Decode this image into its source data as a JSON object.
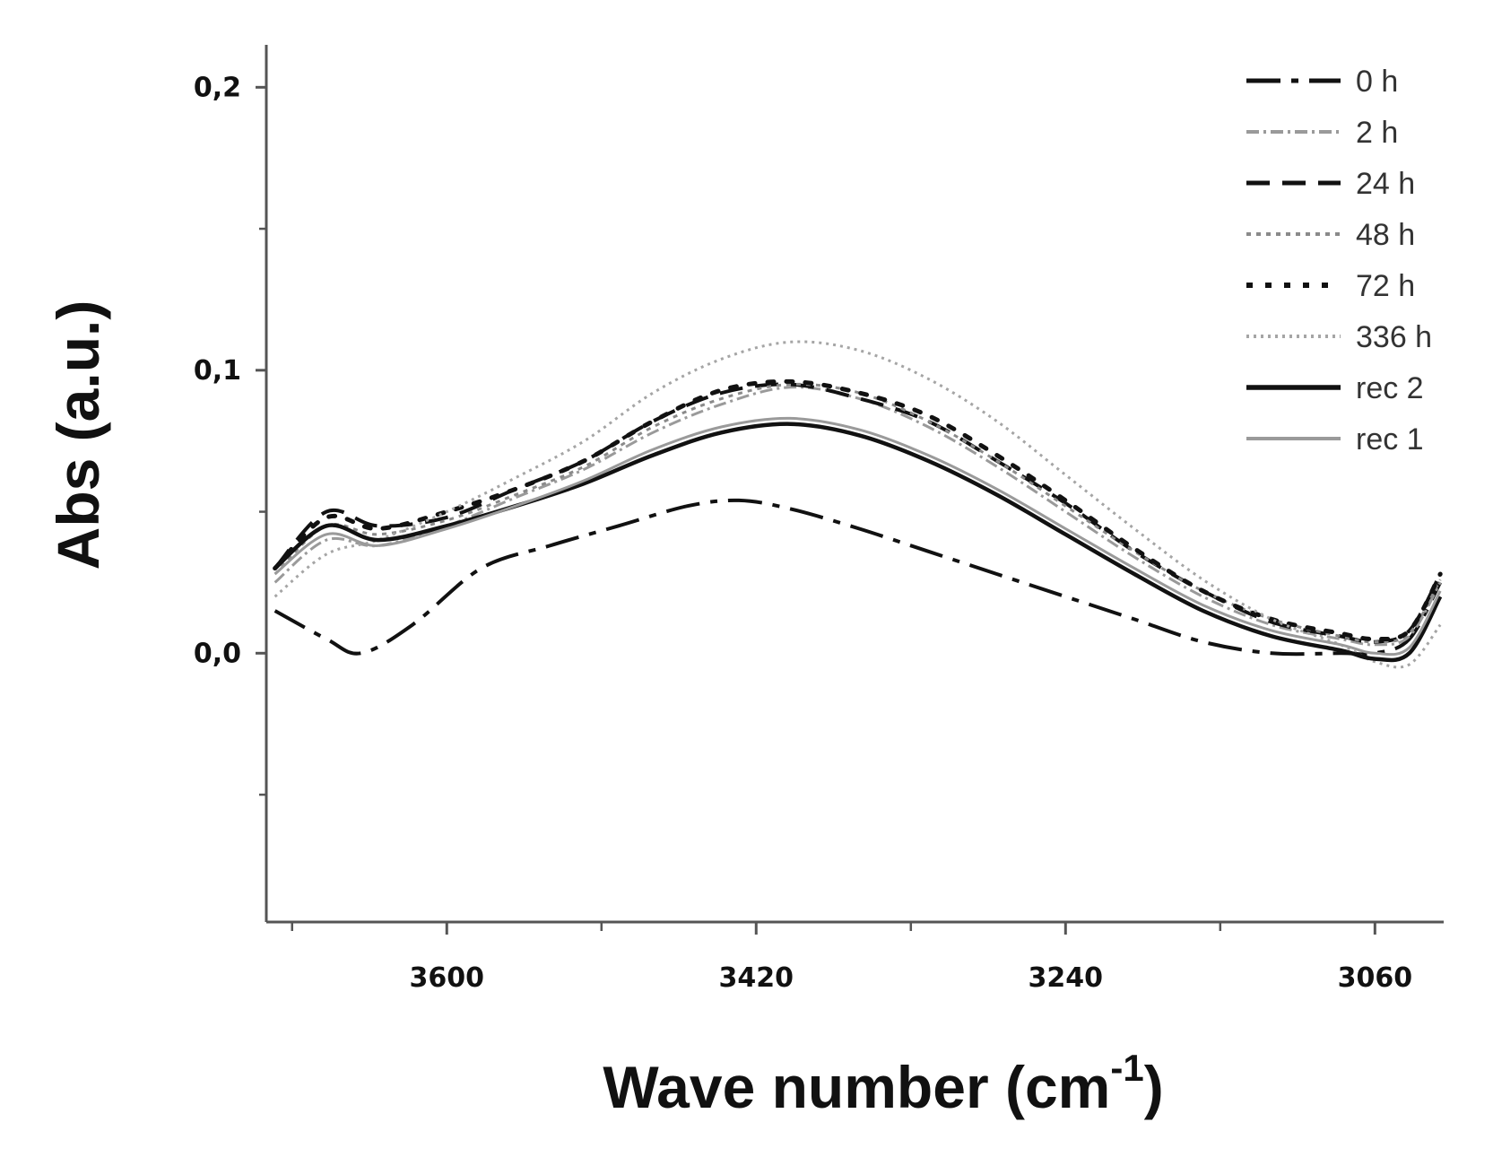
{
  "chart_data": {
    "type": "line",
    "xlabel": "Wave number (cm",
    "xlabel_sup": "-1",
    "xlabel_tail": ")",
    "ylabel": "Abs (a.u.)",
    "x_reversed": true,
    "xlim": [
      3705,
      3020
    ],
    "ylim": [
      -0.095,
      0.215
    ],
    "x_ticks": [
      3600,
      3420,
      3240,
      3060
    ],
    "x_tick_labels": [
      "3600",
      "3420",
      "3240",
      "3060"
    ],
    "y_ticks": [
      0.0,
      0.1,
      0.2
    ],
    "y_tick_labels": [
      "0,0",
      "0,1",
      "0,2"
    ],
    "grid": false,
    "legend_position": "top-right",
    "series": [
      {
        "name": "0 h",
        "color": "#111111",
        "dash": "38,12,8,12",
        "width": 4,
        "x": [
          3700,
          3670,
          3650,
          3620,
          3580,
          3540,
          3500,
          3460,
          3430,
          3400,
          3360,
          3320,
          3280,
          3240,
          3200,
          3160,
          3120,
          3080,
          3060,
          3040,
          3022
        ],
        "y": [
          0.015,
          0.005,
          0.0,
          0.01,
          0.03,
          0.038,
          0.045,
          0.052,
          0.054,
          0.051,
          0.044,
          0.036,
          0.028,
          0.02,
          0.012,
          0.004,
          0.0,
          0.0,
          0.0,
          0.005,
          0.025
        ]
      },
      {
        "name": "2 h",
        "color": "#9a9a9a",
        "dash": "14,5,3,5",
        "width": 3,
        "x": [
          3700,
          3670,
          3640,
          3600,
          3560,
          3520,
          3480,
          3440,
          3400,
          3360,
          3320,
          3280,
          3240,
          3200,
          3160,
          3120,
          3080,
          3060,
          3040,
          3022
        ],
        "y": [
          0.025,
          0.04,
          0.038,
          0.045,
          0.055,
          0.065,
          0.078,
          0.088,
          0.094,
          0.09,
          0.08,
          0.066,
          0.05,
          0.034,
          0.02,
          0.01,
          0.005,
          0.003,
          0.006,
          0.025
        ]
      },
      {
        "name": "24 h",
        "color": "#111111",
        "dash": "26,14",
        "width": 4,
        "x": [
          3700,
          3670,
          3640,
          3600,
          3560,
          3520,
          3480,
          3440,
          3400,
          3360,
          3320,
          3280,
          3240,
          3200,
          3160,
          3120,
          3080,
          3060,
          3040,
          3022
        ],
        "y": [
          0.03,
          0.05,
          0.045,
          0.048,
          0.058,
          0.068,
          0.082,
          0.092,
          0.095,
          0.09,
          0.082,
          0.068,
          0.053,
          0.036,
          0.022,
          0.011,
          0.006,
          0.004,
          0.008,
          0.028
        ]
      },
      {
        "name": "48 h",
        "color": "#8a8a8a",
        "dash": "5,6",
        "width": 3,
        "x": [
          3700,
          3670,
          3640,
          3600,
          3560,
          3520,
          3480,
          3440,
          3400,
          3360,
          3320,
          3280,
          3240,
          3200,
          3160,
          3120,
          3080,
          3060,
          3040,
          3022
        ],
        "y": [
          0.028,
          0.045,
          0.042,
          0.047,
          0.056,
          0.066,
          0.08,
          0.09,
          0.095,
          0.092,
          0.082,
          0.068,
          0.052,
          0.036,
          0.022,
          0.012,
          0.006,
          0.004,
          0.007,
          0.026
        ]
      },
      {
        "name": "72 h",
        "color": "#111111",
        "dash": "7,14",
        "width": 5,
        "x": [
          3700,
          3670,
          3640,
          3600,
          3560,
          3520,
          3480,
          3440,
          3400,
          3360,
          3320,
          3280,
          3240,
          3200,
          3160,
          3120,
          3080,
          3060,
          3040,
          3022
        ],
        "y": [
          0.03,
          0.048,
          0.044,
          0.05,
          0.058,
          0.068,
          0.082,
          0.093,
          0.096,
          0.092,
          0.084,
          0.07,
          0.054,
          0.037,
          0.022,
          0.012,
          0.007,
          0.005,
          0.008,
          0.028
        ]
      },
      {
        "name": "336 h",
        "color": "#a5a5a5",
        "dash": "3,5",
        "width": 3,
        "x": [
          3700,
          3670,
          3640,
          3600,
          3560,
          3520,
          3480,
          3440,
          3400,
          3360,
          3320,
          3280,
          3240,
          3200,
          3160,
          3120,
          3080,
          3060,
          3040,
          3022
        ],
        "y": [
          0.02,
          0.035,
          0.04,
          0.05,
          0.062,
          0.075,
          0.092,
          0.104,
          0.11,
          0.107,
          0.097,
          0.082,
          0.063,
          0.044,
          0.026,
          0.012,
          0.003,
          -0.003,
          -0.004,
          0.01
        ]
      },
      {
        "name": "rec 2",
        "color": "#111111",
        "dash": "",
        "width": 4.5,
        "x": [
          3700,
          3670,
          3640,
          3600,
          3560,
          3520,
          3480,
          3440,
          3400,
          3360,
          3320,
          3280,
          3240,
          3200,
          3160,
          3120,
          3080,
          3060,
          3040,
          3022
        ],
        "y": [
          0.03,
          0.045,
          0.04,
          0.045,
          0.052,
          0.06,
          0.07,
          0.078,
          0.081,
          0.077,
          0.068,
          0.056,
          0.042,
          0.028,
          0.015,
          0.006,
          0.001,
          -0.002,
          0.0,
          0.02
        ]
      },
      {
        "name": "rec 1",
        "color": "#9a9a9a",
        "dash": "",
        "width": 3,
        "x": [
          3700,
          3670,
          3640,
          3600,
          3560,
          3520,
          3480,
          3440,
          3400,
          3360,
          3320,
          3280,
          3240,
          3200,
          3160,
          3120,
          3080,
          3060,
          3040,
          3022
        ],
        "y": [
          0.028,
          0.042,
          0.038,
          0.044,
          0.052,
          0.061,
          0.072,
          0.08,
          0.083,
          0.079,
          0.07,
          0.058,
          0.044,
          0.03,
          0.017,
          0.008,
          0.003,
          0.0,
          0.002,
          0.022
        ]
      }
    ]
  }
}
